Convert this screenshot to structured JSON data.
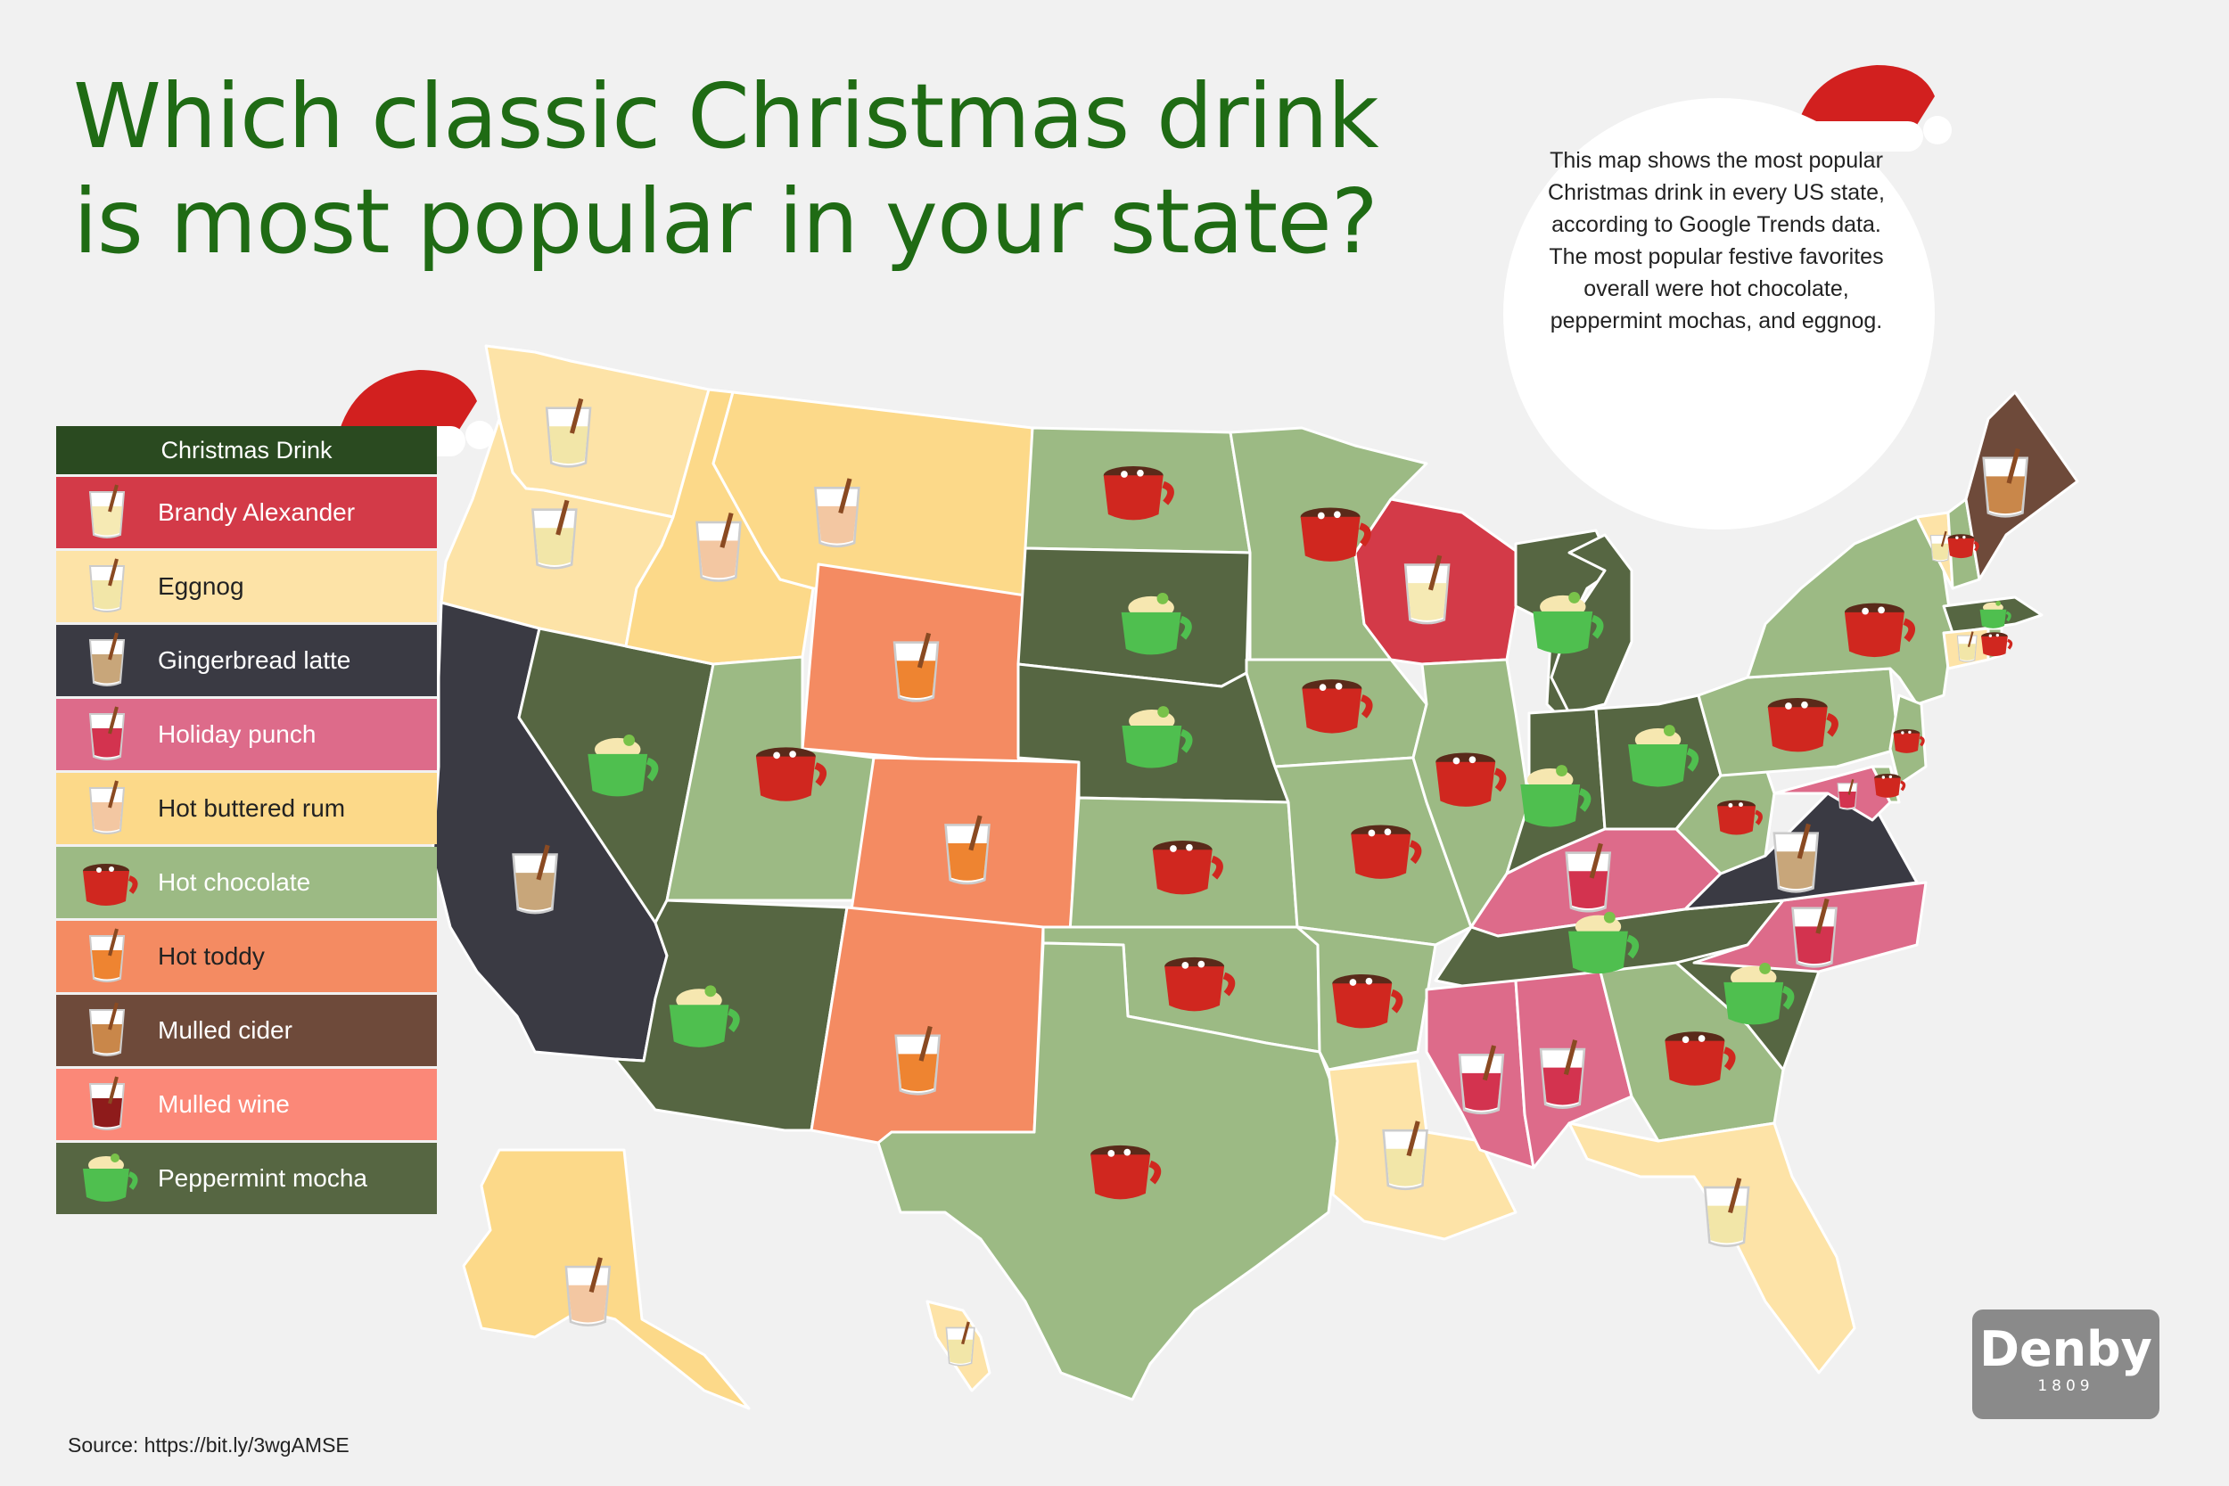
{
  "title_line1": "Which classic Christmas drink",
  "title_line2": "is most popular in your state?",
  "info": "This map shows the most popular Christmas drink in every US state, according to Google Trends data. The most popular festive favorites overall were hot chocolate, peppermint mochas, and eggnog.",
  "source": "Source: https://bit.ly/3wgAMSE",
  "brand": {
    "name": "Denby",
    "year": "1809"
  },
  "legend": {
    "title": "Christmas Drink",
    "items": [
      {
        "key": "brandy",
        "label": "Brandy Alexander",
        "color": "#d33a48",
        "text_color": "#ffffff",
        "icon": "brandy-glass-icon"
      },
      {
        "key": "eggnog",
        "label": "Eggnog",
        "color": "#fde3a7",
        "text_color": "#222222",
        "icon": "eggnog-glass-icon"
      },
      {
        "key": "ginger",
        "label": "Gingerbread latte",
        "color": "#3a3a43",
        "text_color": "#ffffff",
        "icon": "latte-glass-icon"
      },
      {
        "key": "punch",
        "label": "Holiday punch",
        "color": "#dd6b8a",
        "text_color": "#ffffff",
        "icon": "punch-glass-icon"
      },
      {
        "key": "rum",
        "label": "Hot buttered rum",
        "color": "#fcd989",
        "text_color": "#222222",
        "icon": "rum-glass-icon"
      },
      {
        "key": "choc",
        "label": "Hot chocolate",
        "color": "#9cba84",
        "text_color": "#ffffff",
        "icon": "red-mug-icon"
      },
      {
        "key": "toddy",
        "label": "Hot toddy",
        "color": "#f48b62",
        "text_color": "#222222",
        "icon": "toddy-glass-icon"
      },
      {
        "key": "cider",
        "label": "Mulled cider",
        "color": "#6e4a3a",
        "text_color": "#ffffff",
        "icon": "cider-glass-icon"
      },
      {
        "key": "wine",
        "label": "Mulled wine",
        "color": "#fb8878",
        "text_color": "#ffffff",
        "icon": "wine-glass-icon"
      },
      {
        "key": "mocha",
        "label": "Peppermint mocha",
        "color": "#566642",
        "text_color": "#ffffff",
        "icon": "green-mug-icon"
      }
    ]
  },
  "states": [
    {
      "name": "Washington",
      "drink": "eggnog"
    },
    {
      "name": "Oregon",
      "drink": "eggnog"
    },
    {
      "name": "California",
      "drink": "ginger"
    },
    {
      "name": "Nevada",
      "drink": "mocha"
    },
    {
      "name": "Idaho",
      "drink": "rum"
    },
    {
      "name": "Montana",
      "drink": "rum"
    },
    {
      "name": "Wyoming",
      "drink": "toddy"
    },
    {
      "name": "Utah",
      "drink": "choc"
    },
    {
      "name": "Arizona",
      "drink": "mocha"
    },
    {
      "name": "Colorado",
      "drink": "toddy"
    },
    {
      "name": "New Mexico",
      "drink": "toddy"
    },
    {
      "name": "North Dakota",
      "drink": "choc"
    },
    {
      "name": "South Dakota",
      "drink": "mocha"
    },
    {
      "name": "Nebraska",
      "drink": "mocha"
    },
    {
      "name": "Kansas",
      "drink": "choc"
    },
    {
      "name": "Oklahoma",
      "drink": "choc"
    },
    {
      "name": "Texas",
      "drink": "choc"
    },
    {
      "name": "Minnesota",
      "drink": "choc"
    },
    {
      "name": "Iowa",
      "drink": "choc"
    },
    {
      "name": "Missouri",
      "drink": "choc"
    },
    {
      "name": "Arkansas",
      "drink": "choc"
    },
    {
      "name": "Louisiana",
      "drink": "eggnog"
    },
    {
      "name": "Wisconsin",
      "drink": "brandy"
    },
    {
      "name": "Illinois",
      "drink": "choc"
    },
    {
      "name": "Michigan",
      "drink": "mocha"
    },
    {
      "name": "Indiana",
      "drink": "mocha"
    },
    {
      "name": "Ohio",
      "drink": "mocha"
    },
    {
      "name": "Kentucky",
      "drink": "punch"
    },
    {
      "name": "Tennessee",
      "drink": "mocha"
    },
    {
      "name": "Mississippi",
      "drink": "punch"
    },
    {
      "name": "Alabama",
      "drink": "punch"
    },
    {
      "name": "Georgia",
      "drink": "choc"
    },
    {
      "name": "Florida",
      "drink": "eggnog"
    },
    {
      "name": "South Carolina",
      "drink": "mocha"
    },
    {
      "name": "North Carolina",
      "drink": "punch"
    },
    {
      "name": "Virginia",
      "drink": "ginger"
    },
    {
      "name": "West Virginia",
      "drink": "choc"
    },
    {
      "name": "Pennsylvania",
      "drink": "choc"
    },
    {
      "name": "New York",
      "drink": "choc"
    },
    {
      "name": "New Jersey",
      "drink": "choc"
    },
    {
      "name": "Delaware",
      "drink": "choc"
    },
    {
      "name": "Maryland",
      "drink": "punch"
    },
    {
      "name": "Vermont",
      "drink": "eggnog"
    },
    {
      "name": "New Hampshire",
      "drink": "choc"
    },
    {
      "name": "Maine",
      "drink": "cider"
    },
    {
      "name": "Massachusetts",
      "drink": "mocha"
    },
    {
      "name": "Connecticut",
      "drink": "eggnog"
    },
    {
      "name": "Rhode Island",
      "drink": "choc"
    },
    {
      "name": "Alaska",
      "drink": "rum"
    },
    {
      "name": "Hawaii",
      "drink": "eggnog"
    }
  ]
}
